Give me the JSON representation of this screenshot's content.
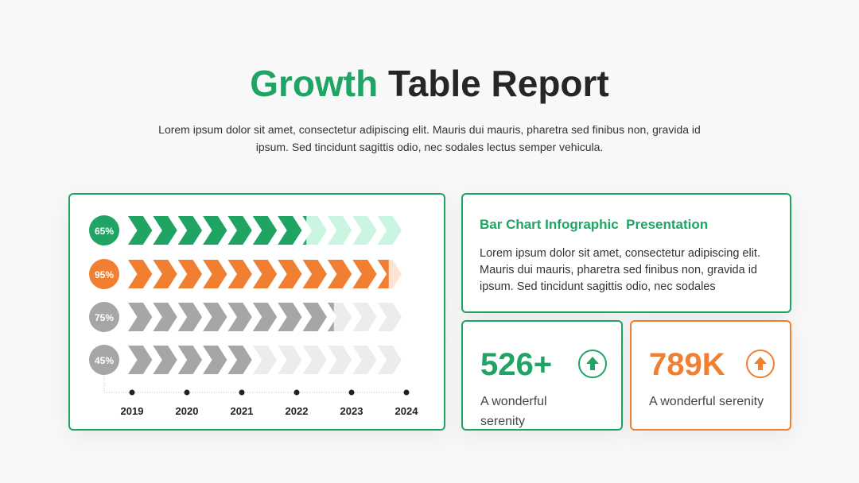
{
  "title_accent": "Growth",
  "title_rest": "Table Report",
  "subtitle": "Lorem ipsum dolor sit amet, consectetur adipiscing elit. Mauris dui mauris, pharetra sed finibus non, gravida id ipsum. Sed tincidunt sagittis odio, nec sodales lectus semper vehicula.",
  "chart_data": {
    "type": "chevron-bar",
    "categories": [
      null,
      null,
      null,
      null
    ],
    "values": [
      65,
      95,
      75,
      45
    ],
    "value_labels": [
      "65%",
      "95%",
      "75%",
      "45%"
    ],
    "colors": [
      "#1fa463",
      "#f07f32",
      "#a6a6a6",
      "#a6a6a6"
    ],
    "track_colors": [
      "#c9f5e1",
      "#fde3d2",
      "#ececec",
      "#ececec"
    ],
    "xlim": [
      0,
      100
    ],
    "years": [
      "2019",
      "2020",
      "2021",
      "2022",
      "2023",
      "2024"
    ]
  },
  "info": {
    "heading": "Bar Chart Infographic  Presentation",
    "text": "Lorem ipsum dolor sit amet, consectetur adipiscing elit. Mauris dui mauris, pharetra sed finibus non, gravida id ipsum. Sed tincidunt sagittis odio, nec sodales"
  },
  "stats": [
    {
      "value": "526+",
      "label": "A wonderful serenity"
    },
    {
      "value": "789K",
      "label": "A wonderful serenity"
    }
  ]
}
